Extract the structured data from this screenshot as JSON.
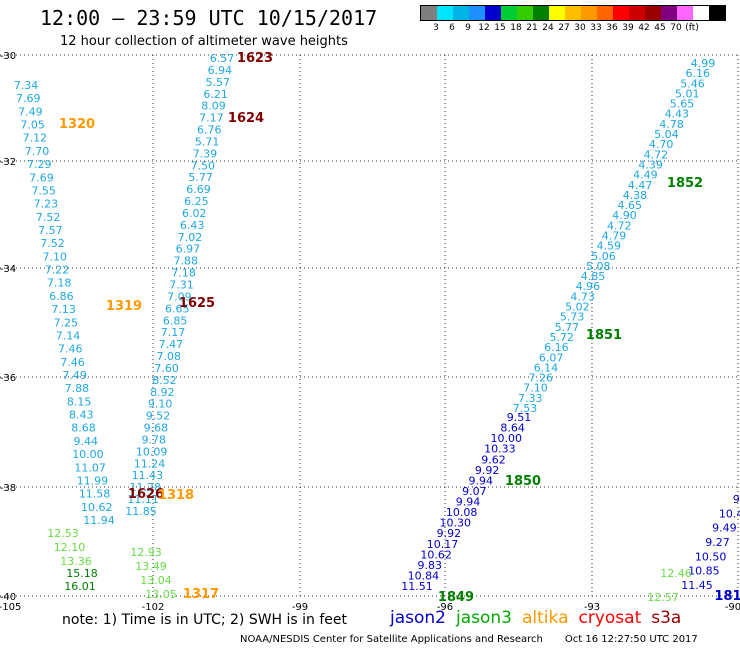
{
  "header": {
    "title": "12:00 — 23:59 UTC 10/15/2017",
    "subtitle": "12 hour collection of altimeter wave heights"
  },
  "color_scale": {
    "colors": [
      "#7f7f7f",
      "#00e5ff",
      "#00b5e5",
      "#1e90ff",
      "#0000cc",
      "#00cc33",
      "#33cc00",
      "#007f00",
      "#ffff00",
      "#ffbf00",
      "#ff9900",
      "#ff6600",
      "#ff0000",
      "#cc0000",
      "#990000",
      "#800080",
      "#ff66ff",
      "#ffffff",
      "#000000"
    ],
    "tick_labels": [
      "3",
      "6",
      "9",
      "12",
      "15",
      "18",
      "21",
      "24",
      "27",
      "30",
      "33",
      "36",
      "39",
      "42",
      "45",
      "70",
      "(ft)"
    ]
  },
  "axes": {
    "x_ticks": [
      "-105",
      "-102",
      "-99",
      "-96",
      "-93",
      "-90"
    ],
    "y_ticks": [
      "-30",
      "-32",
      "-34",
      "-36",
      "-38",
      "-40"
    ]
  },
  "tracks": {
    "a": {
      "color": "#1fa8e0",
      "values": [
        "7.34",
        "7.69",
        "7.49",
        "7.05",
        "7.12",
        "7.70",
        "7.29",
        "7.69",
        "7.55",
        "7.23",
        "7.52",
        "7.57",
        "7.52",
        "7.10",
        "7.22",
        "7.18",
        "6.86",
        "7.13",
        "7.25",
        "7.14",
        "7.46",
        "7.46",
        "7.49",
        "7.88",
        "8.15",
        "8.43",
        "8.68",
        "9.44",
        "10.00",
        "11.07",
        "11.99",
        "11.58",
        "10.62",
        "11.94"
      ]
    },
    "a_tail": {
      "color": "#66dd44",
      "values": [
        "12.53",
        "12.10",
        "13.36"
      ]
    },
    "a_dark": {
      "color": "#007f00",
      "values": [
        "15.18",
        "16.01"
      ]
    },
    "b": {
      "color": "#1fa8e0",
      "values": [
        "6.57",
        "6.94",
        "5.57",
        "6.21",
        "8.09",
        "7.17",
        "6.76",
        "5.71",
        "7.39",
        "7.50",
        "5.77",
        "6.69",
        "6.25",
        "6.02",
        "6.43",
        "7.02",
        "6.97",
        "7.88",
        "7.18",
        "7.31",
        "7.09",
        "6.65",
        "6.85",
        "7.17",
        "7.47",
        "7.08",
        "7.60",
        "8.52",
        "8.92",
        "9.10",
        "9.52",
        "9.68",
        "9.78",
        "10.09",
        "11.24",
        "11.43",
        "11.28",
        "11.11",
        "11.85"
      ]
    },
    "b_tail": {
      "color": "#66dd44",
      "values": [
        "12.93",
        "13.49",
        "13.04",
        "13.05"
      ]
    },
    "c": {
      "color": "#0000cc",
      "values": [
        "11.51",
        "10.84",
        "9.83",
        "10.62",
        "10.17",
        "9.92",
        "10.30",
        "10.08",
        "9.94",
        "9.07",
        "9.94",
        "9.92",
        "9.62",
        "10.33",
        "10.00",
        "8.64",
        "9.51"
      ]
    },
    "c_light": {
      "color": "#1fa8e0",
      "values": [
        "7.53",
        "7.33",
        "7.10",
        "7.26",
        "6.14",
        "6.07",
        "6.16",
        "5.72",
        "5.77",
        "5.73",
        "5.02",
        "4.73",
        "4.96",
        "4.85",
        "5.08",
        "5.06",
        "4.59",
        "4.79",
        "4.72",
        "4.90",
        "4.65",
        "4.38",
        "4.47",
        "4.49",
        "4.39",
        "4.72",
        "4.70",
        "5.04",
        "4.78",
        "4.43",
        "5.65",
        "5.01",
        "5.46",
        "6.16",
        "4.99"
      ]
    },
    "d": {
      "color": "#0000cc",
      "values": [
        "11.45",
        "10.85",
        "10.50",
        "9.27",
        "9.49",
        "10.4",
        "9."
      ]
    },
    "d_green": {
      "color": "#66dd44",
      "values": [
        "12.57",
        "12.46"
      ]
    }
  },
  "pass_labels": [
    {
      "id": "1623",
      "color": "#800000"
    },
    {
      "id": "1624",
      "color": "#800000"
    },
    {
      "id": "1625",
      "color": "#800000"
    },
    {
      "id": "1626",
      "color": "#800000"
    },
    {
      "id": "1320",
      "color": "#ff9900"
    },
    {
      "id": "1319",
      "color": "#ff9900"
    },
    {
      "id": "1318",
      "color": "#ff9900"
    },
    {
      "id": "1317",
      "color": "#ff9900"
    },
    {
      "id": "1852",
      "color": "#007f00"
    },
    {
      "id": "1851",
      "color": "#007f00"
    },
    {
      "id": "1850",
      "color": "#007f00"
    },
    {
      "id": "1849",
      "color": "#007f00"
    },
    {
      "id": "181",
      "color": "#0000cc"
    }
  ],
  "footer": {
    "note": "note: 1) Time is in UTC; 2) SWH is in feet",
    "satellites": [
      {
        "name": "jason2",
        "color": "#0000cc"
      },
      {
        "name": "jason3",
        "color": "#00aa00"
      },
      {
        "name": "altika",
        "color": "#ff9900"
      },
      {
        "name": "cryosat",
        "color": "#ff0000"
      },
      {
        "name": "s3a",
        "color": "#990000"
      }
    ],
    "credit": "NOAA/NESDIS Center for Satellite Applications and Research",
    "timestamp": "Oct 16 12:27:50 UTC 2017"
  }
}
